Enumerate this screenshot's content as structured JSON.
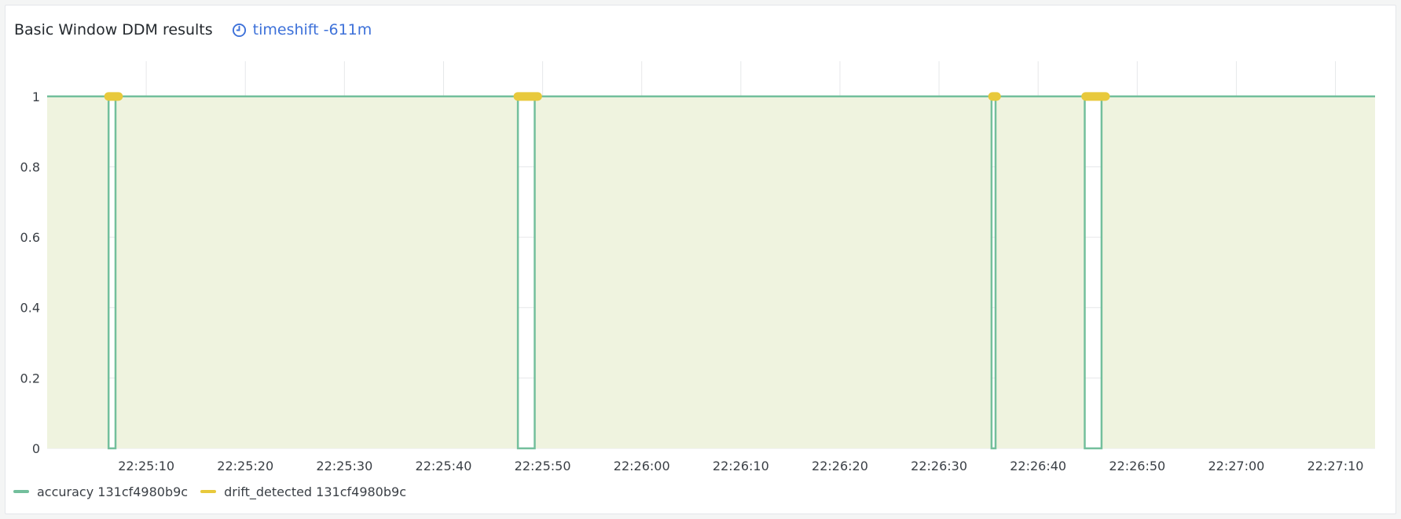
{
  "panel": {
    "title": "Basic Window DDM results",
    "timeshift_icon": "clock-icon",
    "timeshift_label": "timeshift -611m"
  },
  "colors": {
    "accuracy": "#73bf9c",
    "accuracy_fill": "#eff3df",
    "drift_detected": "#e8c93c",
    "link": "#3d71d9"
  },
  "chart_data": {
    "type": "line",
    "title": "Basic Window DDM results",
    "xlabel": "",
    "ylabel": "",
    "ylim": [
      0,
      1.1
    ],
    "yticks": [
      "0",
      "0.2",
      "0.4",
      "0.6",
      "0.8",
      "1"
    ],
    "xticks": [
      "22:25:10",
      "22:25:20",
      "22:25:30",
      "22:25:40",
      "22:25:50",
      "22:26:00",
      "22:26:10",
      "22:26:20",
      "22:26:30",
      "22:26:40",
      "22:26:50",
      "22:27:00",
      "22:27:10"
    ],
    "xlim": [
      "22:25:00",
      "22:27:14"
    ],
    "grid": true,
    "legend_position": "bottom-left",
    "series": [
      {
        "name": "accuracy 131cf4980b9c",
        "style": "step-line-filled",
        "points": [
          [
            "22:25:00",
            1
          ],
          [
            "22:25:06.2",
            1
          ],
          [
            "22:25:06.2",
            0
          ],
          [
            "22:25:06.9",
            0
          ],
          [
            "22:25:06.9",
            1
          ],
          [
            "22:25:47.5",
            1
          ],
          [
            "22:25:47.5",
            0
          ],
          [
            "22:25:49.2",
            0
          ],
          [
            "22:25:49.2",
            1
          ],
          [
            "22:26:35.3",
            1
          ],
          [
            "22:26:35.3",
            0
          ],
          [
            "22:26:35.7",
            0
          ],
          [
            "22:26:35.7",
            1
          ],
          [
            "22:26:44.7",
            1
          ],
          [
            "22:26:44.7",
            0
          ],
          [
            "22:26:46.4",
            0
          ],
          [
            "22:26:46.4",
            1
          ],
          [
            "22:27:14",
            1
          ]
        ]
      },
      {
        "name": "drift_detected 131cf4980b9c",
        "style": "points",
        "segments": [
          [
            "22:25:06.2",
            "22:25:07.2"
          ],
          [
            "22:25:47.5",
            "22:25:49.5"
          ],
          [
            "22:26:35.4",
            "22:26:35.8"
          ],
          [
            "22:26:44.8",
            "22:26:46.8"
          ]
        ],
        "value": 1
      }
    ]
  }
}
